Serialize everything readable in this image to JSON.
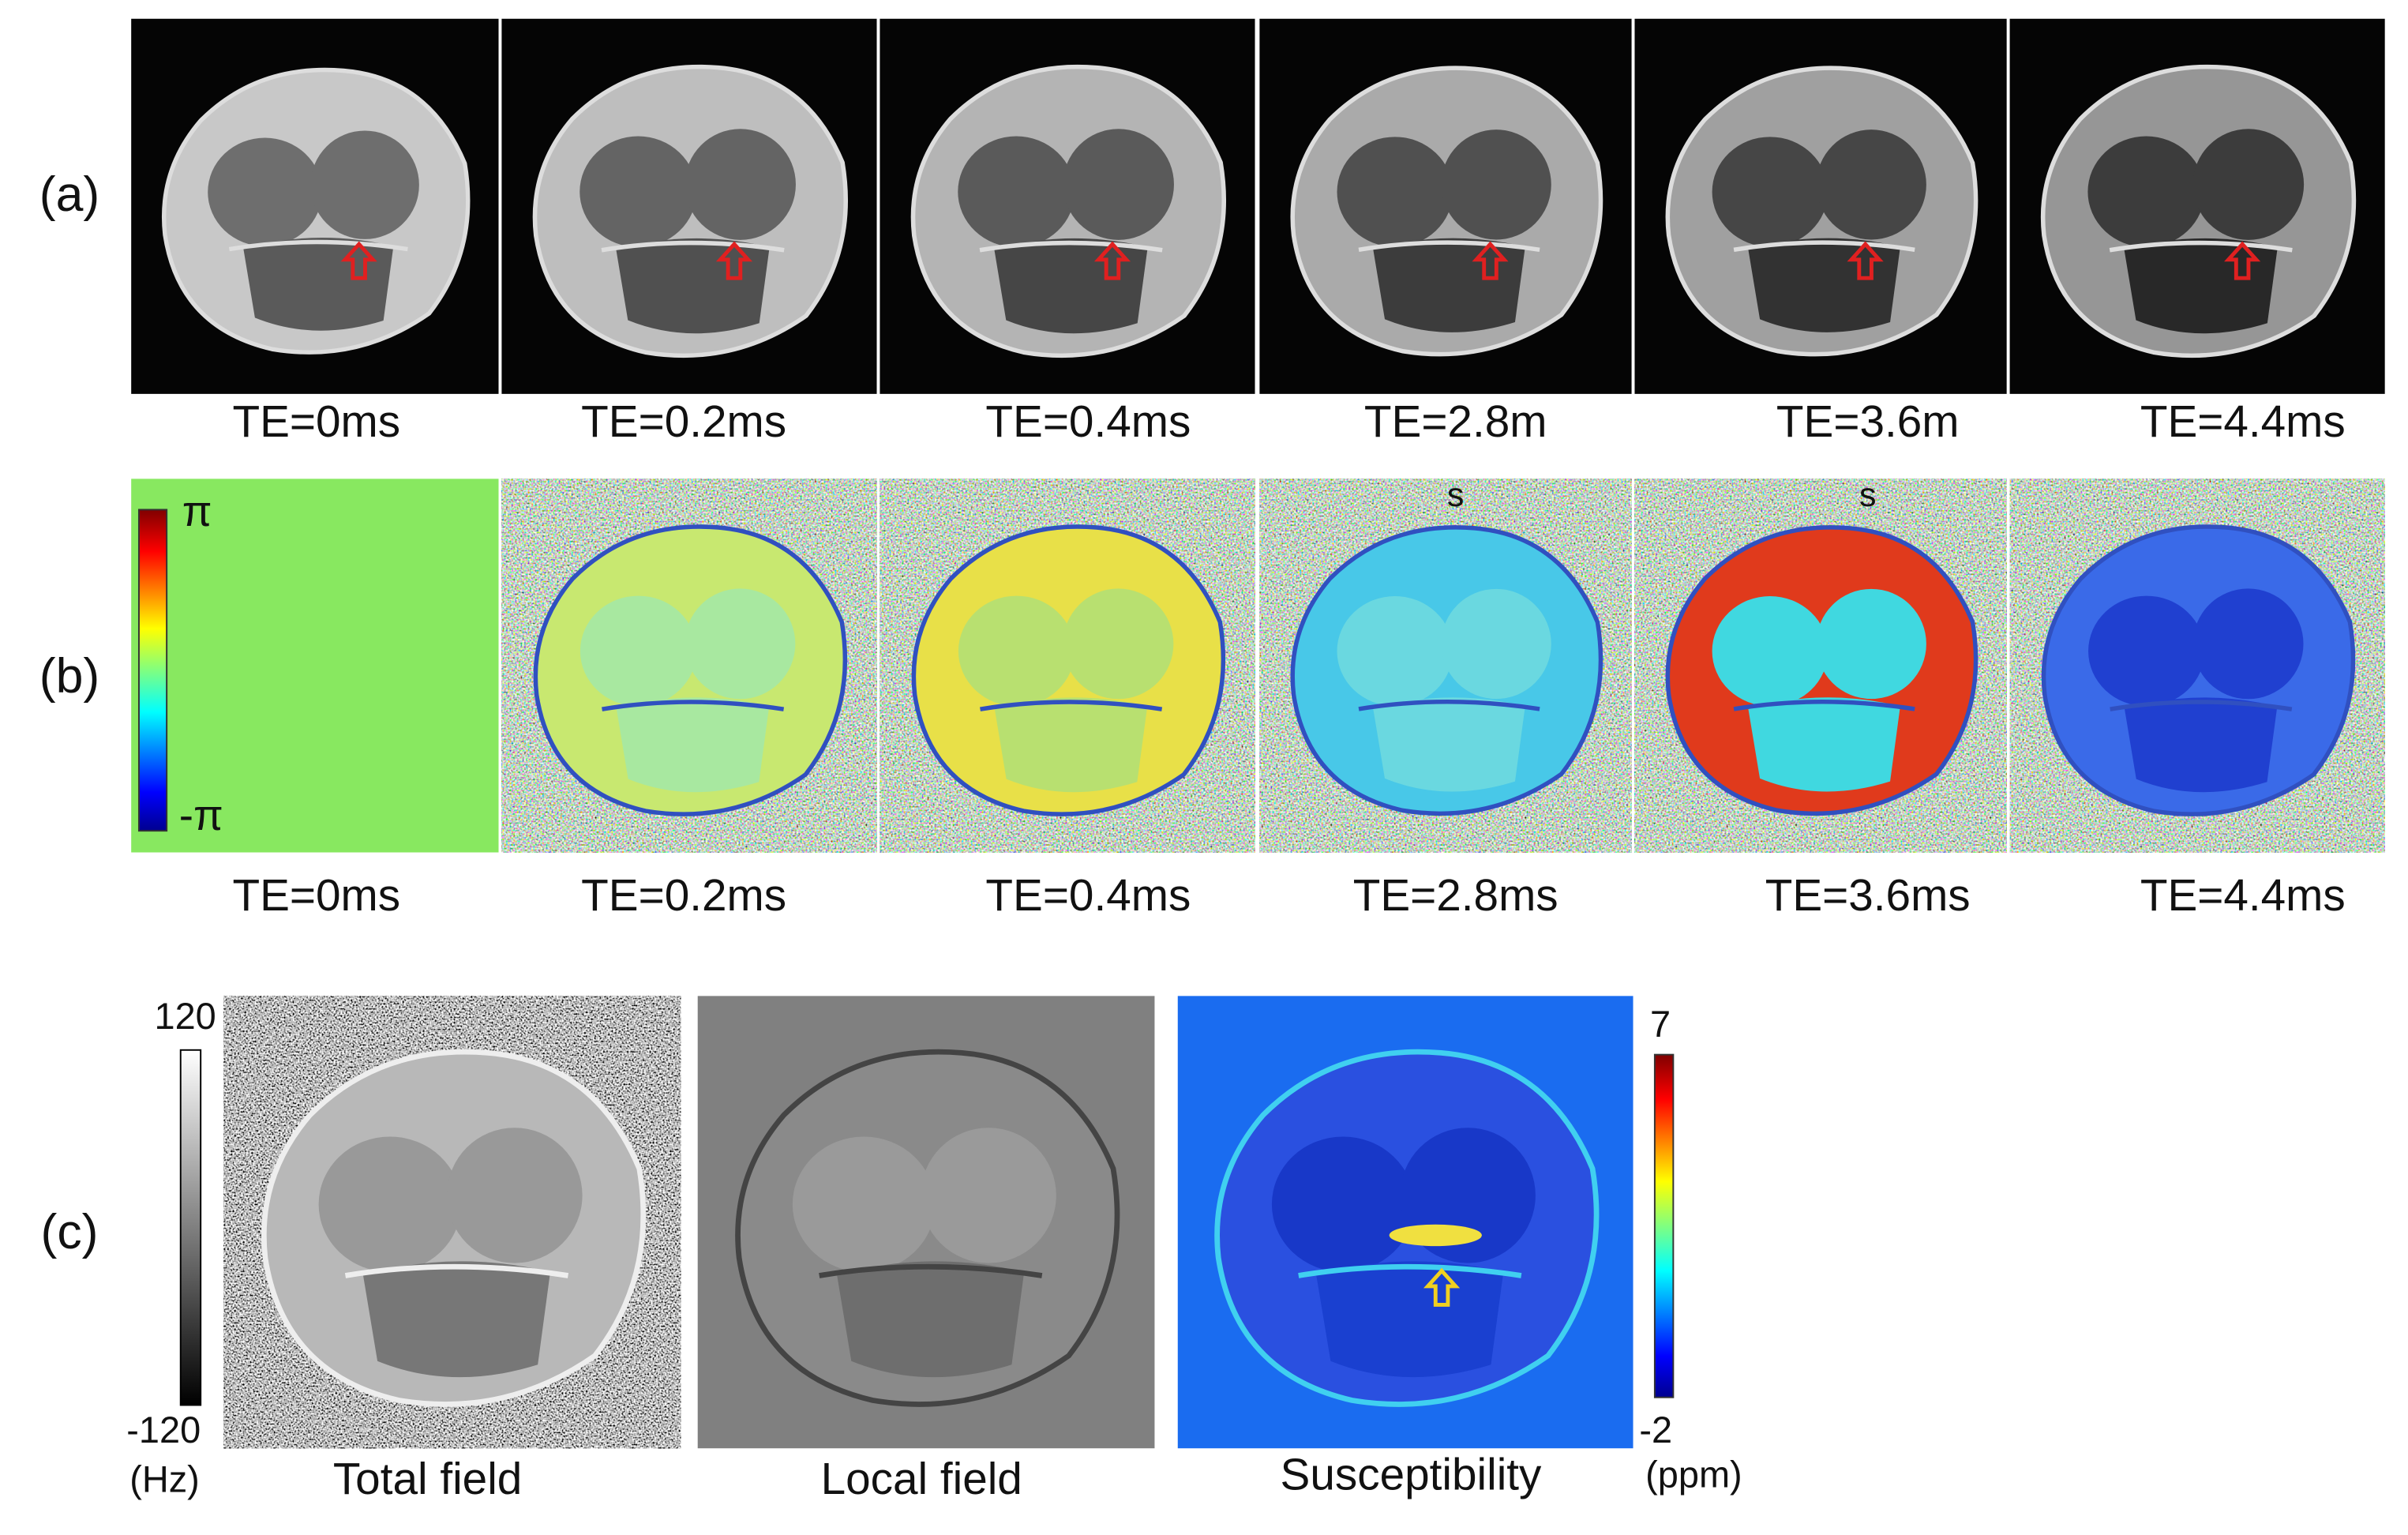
{
  "rows": [
    {
      "label": "(a)",
      "captions": [
        [
          "TE=0ms"
        ],
        [
          "TE=0.2ms"
        ],
        [
          "TE=0.4ms"
        ],
        [
          "TE=2.8m",
          "s"
        ],
        [
          "TE=3.6m",
          "s"
        ],
        [
          "TE=4.4ms"
        ]
      ]
    },
    {
      "label": "(b)",
      "captions": [
        [
          "TE=0ms"
        ],
        [
          "TE=0.2ms"
        ],
        [
          "TE=0.4ms"
        ],
        [
          "TE=2.8ms"
        ],
        [
          "TE=3.6ms"
        ],
        [
          "TE=4.4ms"
        ]
      ],
      "colorbar": {
        "top": "π",
        "bottom": "-π"
      }
    },
    {
      "label": "(c)",
      "captions": [
        [
          "Total field"
        ],
        [
          "Local field"
        ],
        [
          "Susceptibility"
        ]
      ],
      "field_colorbar": {
        "top": "120",
        "bottom": "-120",
        "unit": "(Hz)"
      },
      "susceptibility_colorbar": {
        "top": "7",
        "bottom": "-2",
        "unit": "(ppm)"
      }
    }
  ]
}
